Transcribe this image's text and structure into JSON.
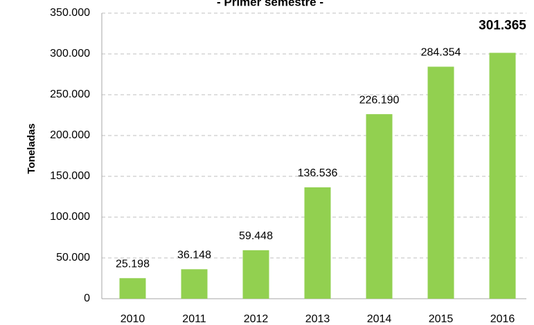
{
  "chart_data": {
    "type": "bar",
    "title": "- Primer semestre -",
    "ylabel": "Toneladas",
    "categories": [
      "2010",
      "2011",
      "2012",
      "2013",
      "2014",
      "2015",
      "2016"
    ],
    "values": [
      25198,
      36148,
      59448,
      136536,
      226190,
      284354,
      301365
    ],
    "value_labels": [
      "25.198",
      "36.148",
      "59.448",
      "136.536",
      "226.190",
      "284.354",
      "301.365"
    ],
    "value_label_bold": [
      false,
      false,
      false,
      false,
      false,
      false,
      true
    ],
    "color": "#92d050",
    "ylim": [
      0,
      350000
    ],
    "yticks": [
      0,
      {
        "value": 50000,
        "label": "50.000"
      },
      {
        "value": 100000,
        "label": "100.000"
      },
      {
        "value": 150000,
        "label": "150.000"
      },
      {
        "value": 200000,
        "label": "200.000"
      },
      {
        "value": 250000,
        "label": "250.000"
      },
      {
        "value": 300000,
        "label": "300.000"
      },
      {
        "value": 350000,
        "label": "350.000"
      }
    ],
    "grid": true
  }
}
